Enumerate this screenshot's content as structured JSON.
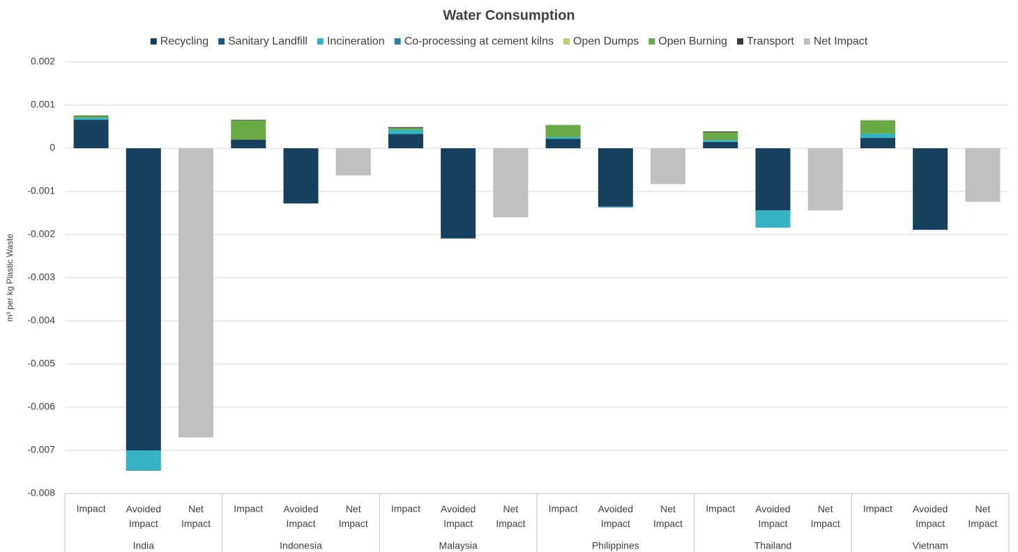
{
  "chart_data": {
    "type": "stacked-bar",
    "title": "Water Consumption",
    "y_label": "m³ per kg Plastic Waste",
    "categories": [
      "Impact",
      "Avoided Impact",
      "Net Impact",
      "Impact",
      "Avoided Impact",
      "Net Impact",
      "Impact",
      "Avoided Impact",
      "Net Impact",
      "Impact",
      "Avoided Impact",
      "Net Impact",
      "Impact",
      "Avoided Impact",
      "Net Impact",
      "Impact",
      "Avoided Impact",
      "Net Impact"
    ],
    "groups": [
      "India",
      "Indonesia",
      "Malaysia",
      "Philippines",
      "Thailand",
      "Vietnam"
    ],
    "series": [
      {
        "name": "Recycling",
        "color": "#17405e",
        "values": [
          0.00066,
          -0.007,
          null,
          0.0002,
          -0.00128,
          null,
          0.00033,
          -0.00209,
          null,
          0.00022,
          -0.00134,
          null,
          0.00015,
          -0.00144,
          null,
          0.00024,
          -0.00189,
          null
        ]
      },
      {
        "name": "Sanitary Landfill",
        "color": "#1f5a80",
        "values": [
          0,
          0,
          null,
          0,
          0,
          null,
          0,
          0,
          null,
          0,
          0,
          null,
          0,
          0,
          null,
          0,
          0,
          null
        ]
      },
      {
        "name": "Incineration",
        "color": "#36b3c2",
        "values": [
          5e-05,
          -0.00045,
          null,
          0,
          0,
          null,
          0.0001,
          0,
          null,
          4e-05,
          0,
          null,
          4e-05,
          -0.0004,
          null,
          0.0001,
          0,
          null
        ]
      },
      {
        "name": "Co-processing at cement kilns",
        "color": "#2a7fa0",
        "values": [
          0,
          -2e-05,
          null,
          0,
          0,
          null,
          0,
          0,
          null,
          0,
          -3e-05,
          null,
          0,
          0,
          null,
          0,
          0,
          null
        ]
      },
      {
        "name": "Open Dumps",
        "color": "#b4d56a",
        "values": [
          0,
          0,
          null,
          0,
          0,
          null,
          0,
          0,
          null,
          0,
          0,
          null,
          0,
          0,
          null,
          0,
          0,
          null
        ]
      },
      {
        "name": "Open Burning",
        "color": "#6aaa45",
        "values": [
          4e-05,
          0,
          null,
          0.00045,
          0,
          null,
          4e-05,
          0,
          null,
          0.00028,
          0,
          null,
          0.00018,
          0,
          null,
          0.00031,
          0,
          null
        ]
      },
      {
        "name": "Transport",
        "color": "#3a3a3a",
        "values": [
          1e-05,
          0,
          null,
          1e-05,
          0,
          null,
          2e-05,
          0,
          null,
          0,
          0,
          null,
          2e-05,
          0,
          null,
          0,
          0,
          null
        ]
      },
      {
        "name": "Net Impact",
        "color": "#bfbfbf",
        "values": [
          null,
          null,
          -0.0067,
          null,
          null,
          -0.00063,
          null,
          null,
          -0.0016,
          null,
          null,
          -0.00083,
          null,
          null,
          -0.00144,
          null,
          null,
          -0.00124
        ]
      }
    ],
    "ylim": [
      -0.008,
      0.002
    ],
    "yticks": [
      0.002,
      0.001,
      0,
      -0.001,
      -0.002,
      -0.003,
      -0.004,
      -0.005,
      -0.006,
      -0.007,
      -0.008
    ],
    "grid": true
  }
}
